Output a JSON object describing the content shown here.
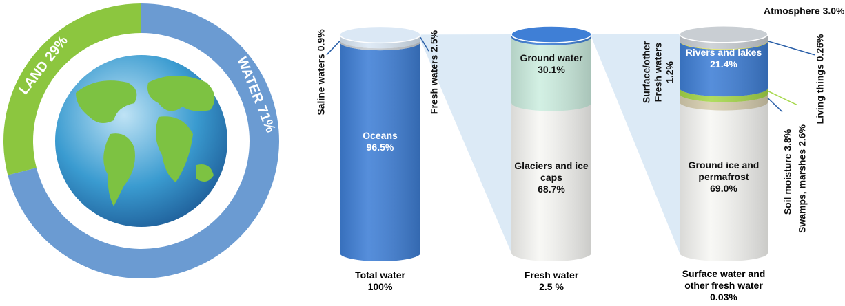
{
  "chart_data": [
    {
      "type": "donut",
      "categories": [
        "LAND",
        "WATER"
      ],
      "values": [
        29,
        71
      ],
      "value_labels": [
        "29%",
        "71%"
      ],
      "colors": [
        "#8cc63f",
        "#6b9bd2"
      ]
    },
    {
      "type": "cylinder",
      "title": [
        "Total water",
        "100%"
      ],
      "ylim": [
        0,
        100
      ],
      "series": [
        {
          "name": "Oceans",
          "color": "#3f7fd6",
          "values": [
            96.5
          ],
          "value_labels": [
            "96.5%"
          ]
        },
        {
          "name": "Saline waters",
          "color": "#c9ced3",
          "values": [
            0.9
          ],
          "value_labels": [
            "0.9%"
          ]
        },
        {
          "name": "Fresh waters",
          "color": "#dbe8f5",
          "values": [
            2.5
          ],
          "value_labels": [
            "2.5%"
          ]
        }
      ]
    },
    {
      "type": "cylinder",
      "title": [
        "Fresh water",
        "2.5 %"
      ],
      "ylim": [
        0,
        100
      ],
      "series": [
        {
          "name": "Glaciers and ice caps",
          "color": "#f7f7f4",
          "values": [
            68.7
          ],
          "value_labels": [
            "68.7%"
          ]
        },
        {
          "name": "Ground water",
          "color": "#cdeee0",
          "values": [
            30.1
          ],
          "value_labels": [
            "30.1%"
          ]
        },
        {
          "name": "Surface/other Fresh waters",
          "color": "#3f7fd6",
          "values": [
            1.2
          ],
          "value_labels": [
            "1.2%"
          ]
        }
      ]
    },
    {
      "type": "cylinder",
      "title": [
        "Surface water and",
        "other fresh water",
        "0.03%"
      ],
      "ylim": [
        0,
        100
      ],
      "series": [
        {
          "name": "Ground ice and permafrost",
          "color": "#f7f7f4",
          "values": [
            69
          ],
          "value_labels": [
            "69.0%"
          ]
        },
        {
          "name": "Soil moisture",
          "color": "#d8cfb0",
          "values": [
            3.8
          ],
          "value_labels": [
            "3.8%"
          ]
        },
        {
          "name": "Swamps, marshes",
          "color": "#a6d84a",
          "values": [
            2.6
          ],
          "value_labels": [
            "2.6%"
          ]
        },
        {
          "name": "Rivers and lakes",
          "color": "#3f7fd6",
          "values": [
            21.4
          ],
          "value_labels": [
            "21.4%"
          ]
        },
        {
          "name": "Living things",
          "color": "#e8e84a",
          "values": [
            0.26
          ],
          "value_labels": [
            "0.26%"
          ]
        },
        {
          "name": "Atmosphere",
          "color": "#c9ced3",
          "values": [
            3
          ],
          "value_labels": [
            "3.0%"
          ]
        }
      ]
    }
  ]
}
